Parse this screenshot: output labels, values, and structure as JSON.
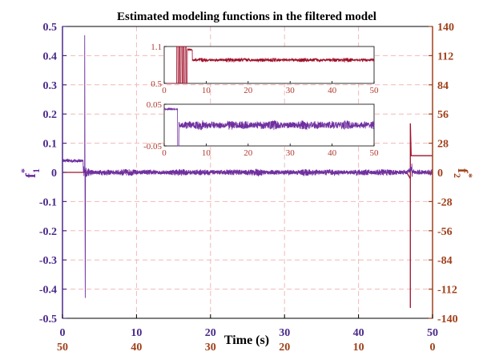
{
  "colors": {
    "f1": "#7030a0",
    "f2": "#a0102a",
    "left_axis": "#4b2a8a",
    "right_axis": "#a0401a",
    "grid": "#f2b8b8",
    "inset_tick": "#b03a2e"
  },
  "chart_data": {
    "type": "line",
    "title": "Estimated modeling functions in the filtered model",
    "xlabel": "Time (s)",
    "ylabel_left": "f",
    "ylabel_left_sub": "1",
    "ylabel_left_sup": "*",
    "ylabel_right": "f",
    "ylabel_right_sub": "2",
    "ylabel_right_sup": "*",
    "xlim": [
      0,
      50
    ],
    "xticks": [
      0,
      10,
      20,
      30,
      40,
      50
    ],
    "xticks_secondary": [
      50,
      40,
      30,
      20,
      10,
      0
    ],
    "ylim_left": [
      -0.5,
      0.5
    ],
    "yticks_left": [
      -0.5,
      -0.4,
      -0.3,
      -0.2,
      -0.1,
      0,
      0.1,
      0.2,
      0.3,
      0.4,
      0.5
    ],
    "ylim_right": [
      -140,
      140
    ],
    "yticks_right": [
      -140,
      -112,
      -84,
      -56,
      -28,
      0,
      28,
      56,
      84,
      112,
      140
    ],
    "grid": true,
    "series": [
      {
        "axis": "left",
        "baseline": 0.0,
        "noise_amplitude": 0.012,
        "features": [
          {
            "x": [
              0,
              2.8
            ],
            "y": 0.04,
            "note": "initial plateau"
          },
          {
            "x": 3.0,
            "y_min": -0.43,
            "y_max": 0.47
          },
          {
            "x": 47.2,
            "y_min": -0.015,
            "y_max": 0.03
          }
        ]
      },
      {
        "axis": "right",
        "baseline": 0,
        "features": [
          {
            "x": [
              46.5,
              47.0
            ],
            "y": -6
          },
          {
            "x": 47.0,
            "y_min": -130,
            "y_max": 47
          },
          {
            "x": [
              47.0,
              50
            ],
            "y": 16
          }
        ]
      }
    ],
    "insets": [
      {
        "position": "upper",
        "series": "f2",
        "xlim": [
          0,
          50
        ],
        "xticks": [
          0,
          10,
          20,
          30,
          40,
          50
        ],
        "ylim": [
          0.5,
          1.1
        ],
        "yticks": [
          0.5,
          1.1
        ],
        "yticklabels": [
          "0.5",
          "1.1"
        ],
        "baseline": 0.88,
        "noise_amplitude": 0.035,
        "startup_end": 5.5
      },
      {
        "position": "lower",
        "series": "f1",
        "xlim": [
          0,
          50
        ],
        "xticks": [
          0,
          10,
          20,
          30,
          40,
          50
        ],
        "ylim": [
          -0.05,
          0.05
        ],
        "yticks": [
          -0.05,
          0.05
        ],
        "yticklabels": [
          "-0.05",
          "0.05"
        ],
        "baseline": 0.0,
        "noise_amplitude": 0.012,
        "initial_level": 0.038,
        "startup_end": 3.2
      }
    ]
  }
}
